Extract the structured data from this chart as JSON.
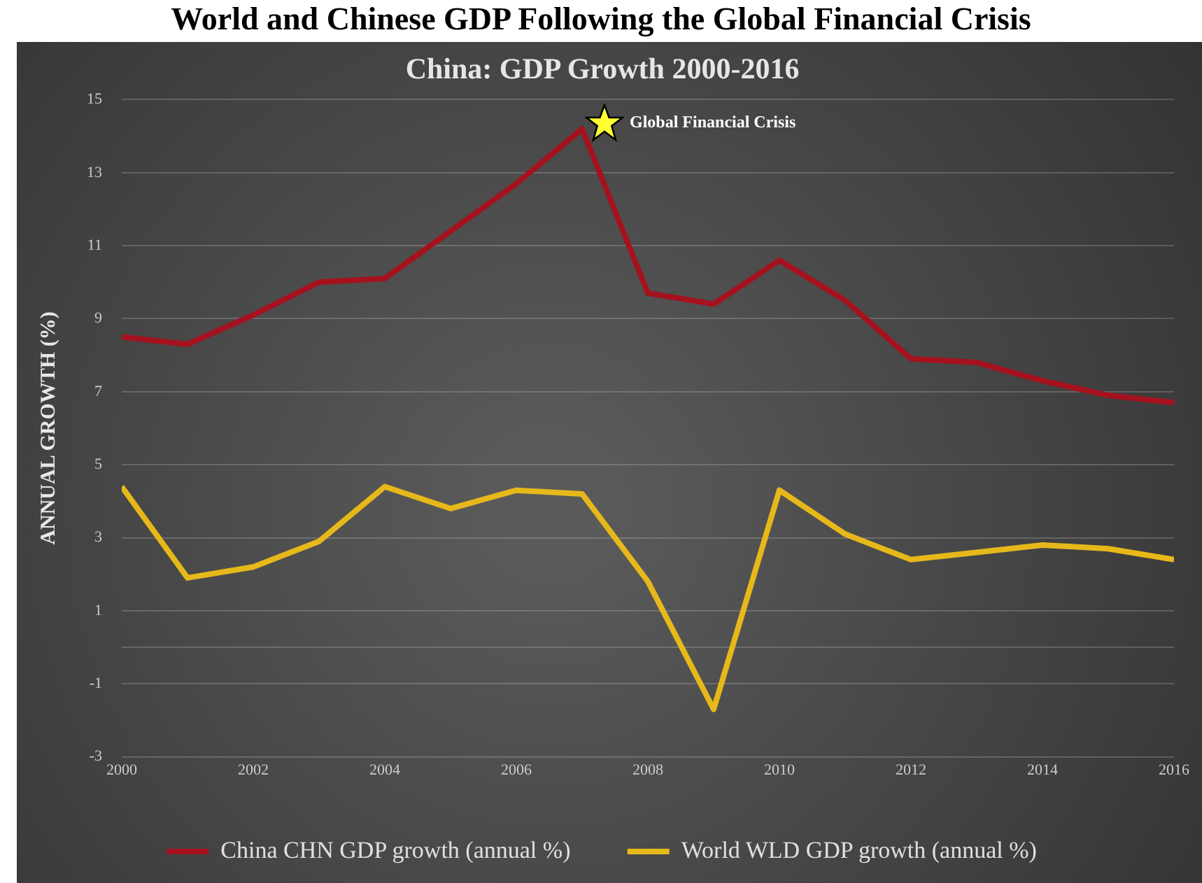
{
  "chart_data": {
    "type": "line",
    "title": "World and Chinese GDP Following the Global Financial Crisis",
    "subtitle": "China: GDP Growth 2000-2016",
    "ylabel": "ANNUAL GROWTH (%)",
    "x": [
      2000,
      2001,
      2002,
      2003,
      2004,
      2005,
      2006,
      2007,
      2008,
      2009,
      2010,
      2011,
      2012,
      2013,
      2014,
      2015,
      2016
    ],
    "xlim": [
      2000,
      2016
    ],
    "xticks": [
      2000,
      2002,
      2004,
      2006,
      2008,
      2010,
      2012,
      2014,
      2016
    ],
    "ylim": [
      -3,
      15
    ],
    "yticks": [
      -3,
      -1,
      {
        "value": 0,
        "label": null
      },
      1,
      3,
      5,
      7,
      9,
      11,
      13,
      15
    ],
    "series": [
      {
        "name": "China CHN GDP growth (annual %)",
        "color": "#a5121e",
        "values": [
          8.5,
          8.3,
          9.1,
          10.0,
          10.1,
          11.4,
          12.7,
          14.2,
          9.7,
          9.4,
          10.6,
          9.5,
          7.9,
          7.8,
          7.3,
          6.9,
          6.7
        ]
      },
      {
        "name": "World WLD GDP growth (annual %)",
        "color": "#e6b81a",
        "values": [
          4.4,
          1.9,
          2.2,
          2.9,
          4.4,
          3.8,
          4.3,
          4.2,
          1.8,
          -1.7,
          4.3,
          3.1,
          2.4,
          2.6,
          2.8,
          2.7,
          2.4
        ]
      }
    ],
    "annotations": [
      {
        "text": "Global Financial Crisis",
        "x": 2007,
        "y": 14.2
      }
    ],
    "grid": "y",
    "legend": "bottom",
    "marker": "none",
    "line_style": "solid"
  }
}
